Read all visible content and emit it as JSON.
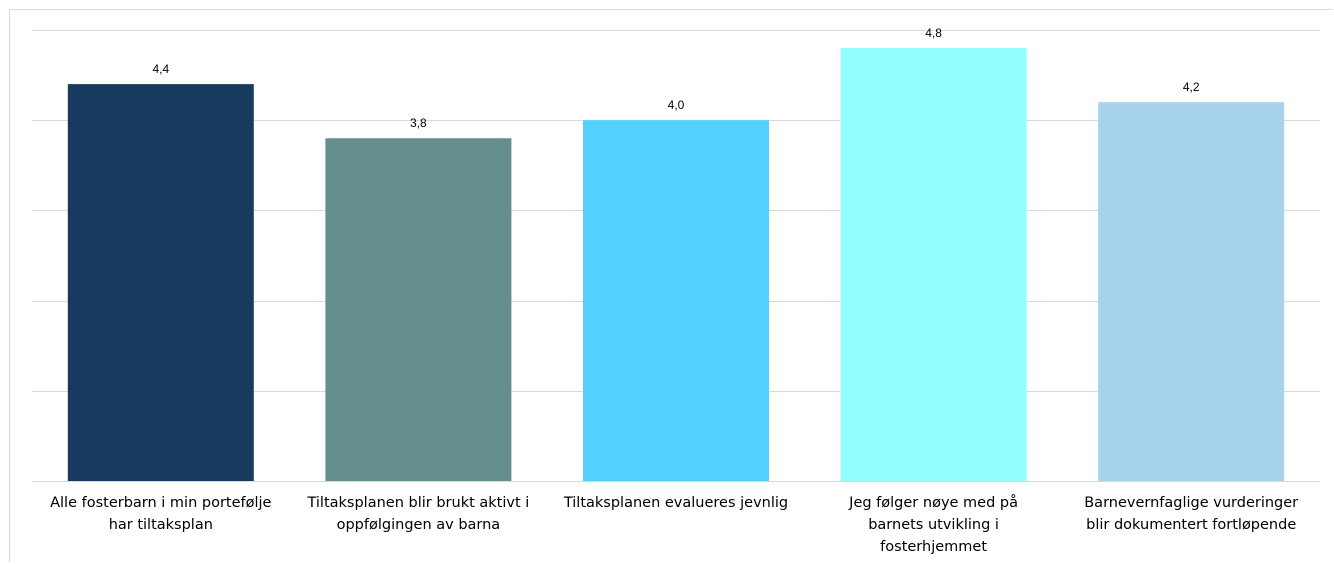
{
  "chart_data": {
    "type": "bar",
    "categories": [
      [
        "Alle fosterbarn i min portefølje",
        "har tiltaksplan"
      ],
      [
        "Tiltaksplanen blir brukt aktivt i",
        "oppfølgingen av barna"
      ],
      [
        "Tiltaksplanen evalueres jevnlig"
      ],
      [
        "Jeg følger nøye med på",
        "barnets utvikling i",
        "fosterhjemmet"
      ],
      [
        "Barnevernfaglige vurderinger",
        "blir dokumentert fortløpende"
      ]
    ],
    "values": [
      4.4,
      3.8,
      4.0,
      4.8,
      4.2
    ],
    "value_labels": [
      "4,4",
      "3,8",
      "4,0",
      "4,8",
      "4,2"
    ],
    "colors": [
      "#173a5e",
      "#658f8c",
      "#53d1fe",
      "#92fffe",
      "#a7d3ec"
    ],
    "ylim": [
      0,
      5
    ],
    "grid": true,
    "gridline_color": "#d9d9d9",
    "title": "",
    "xlabel": "",
    "ylabel": ""
  }
}
